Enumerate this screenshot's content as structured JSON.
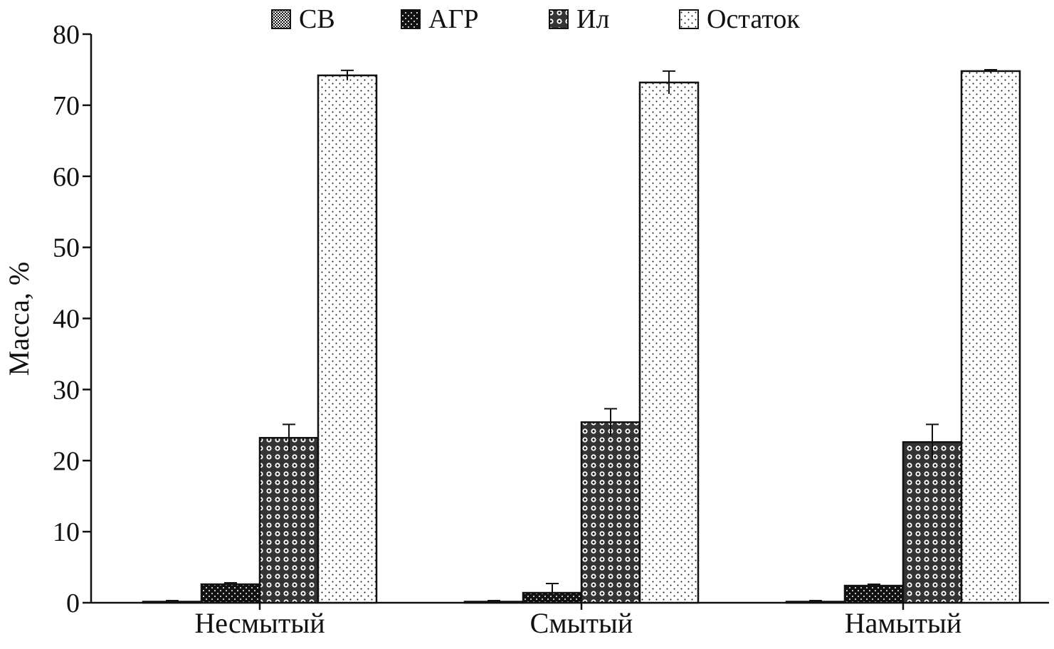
{
  "chart_data": {
    "type": "bar",
    "title": "",
    "xlabel": "",
    "ylabel": "Масса, %",
    "ylim": [
      0,
      80
    ],
    "yticks": [
      0,
      10,
      20,
      30,
      40,
      50,
      60,
      70,
      80
    ],
    "grid": false,
    "legend_position": "top",
    "categories": [
      "Несмытый",
      "Смытый",
      "Намытый"
    ],
    "series": [
      {
        "name": "СВ",
        "pattern": "fine-checker",
        "values": [
          0.1,
          0.1,
          0.1
        ],
        "errors": [
          0.2,
          0.2,
          0.2
        ]
      },
      {
        "name": "АГР",
        "pattern": "dark-dots",
        "values": [
          2.6,
          1.4,
          2.4
        ],
        "errors": [
          0.2,
          1.3,
          0.2
        ]
      },
      {
        "name": "Ил",
        "pattern": "rings",
        "values": [
          23.2,
          25.4,
          22.6
        ],
        "errors": [
          1.9,
          1.9,
          2.5
        ]
      },
      {
        "name": "Остаток",
        "pattern": "sparse-dots",
        "values": [
          74.2,
          73.2,
          74.8
        ],
        "errors": [
          0.7,
          1.6,
          0.2
        ]
      }
    ],
    "colors": {
      "ink": "#111111",
      "background": "#ffffff"
    }
  }
}
